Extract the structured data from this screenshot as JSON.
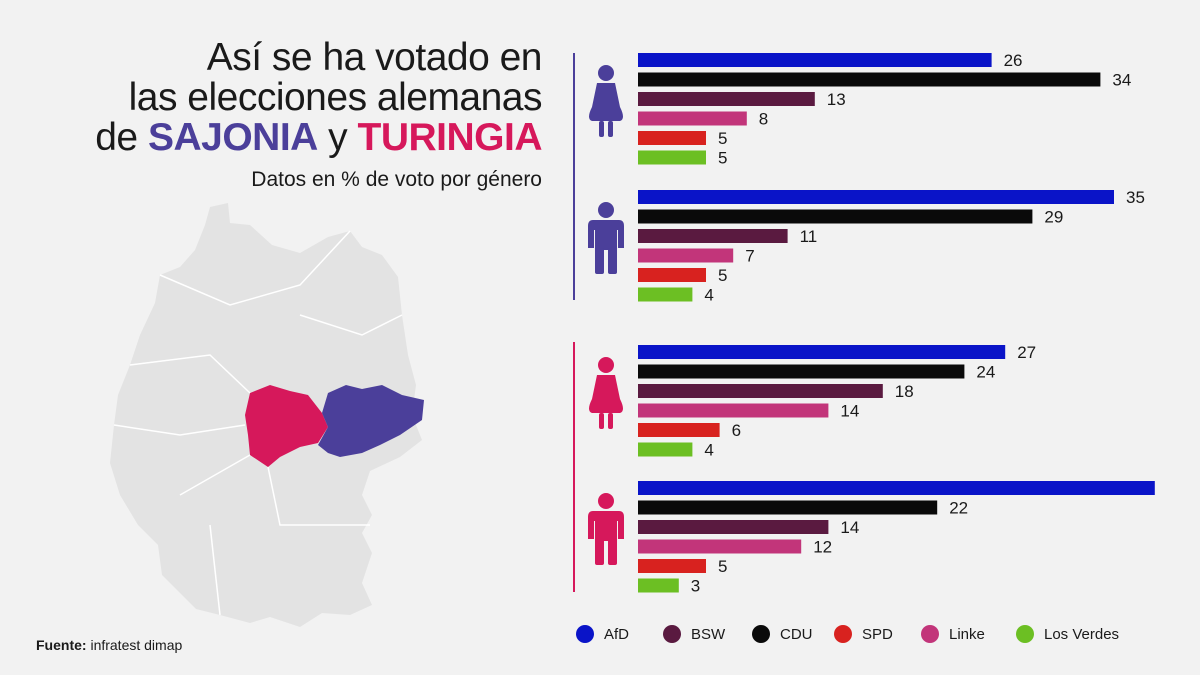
{
  "title": {
    "line1": "Así se ha votado en",
    "line2": "las elecciones alemanas",
    "line3_pre": "de ",
    "state1": "SAJONIA",
    "connector": " y ",
    "state2": "TURINGIA",
    "state1_color": "#4b3f9a",
    "state2_color": "#d6185b"
  },
  "subtitle": "Datos en % de voto por género",
  "source": {
    "label": "Fuente:",
    "text": " infratest dimap"
  },
  "map": {
    "sajonia_color": "#4b3f9a",
    "turingia_color": "#d6185b",
    "base_color": "#e3e3e3"
  },
  "chart_data": {
    "type": "bar",
    "orientation": "horizontal",
    "categories": [
      "AfD",
      "CDU",
      "BSW",
      "Linke",
      "SPD",
      "Los Verdes"
    ],
    "colors": {
      "AfD": "#0a14c8",
      "CDU": "#0a0a0a",
      "BSW": "#5a1a40",
      "Linke": "#c2357a",
      "SPD": "#d8221f",
      "Los Verdes": "#6cbf23"
    },
    "groups": [
      {
        "state": "Sajonia",
        "gender": "mujeres",
        "icon": "woman-icon",
        "color": "#4b3f9a",
        "values": [
          26,
          34,
          13,
          8,
          5,
          5
        ]
      },
      {
        "state": "Sajonia",
        "gender": "hombres",
        "icon": "man-icon",
        "color": "#4b3f9a",
        "values": [
          35,
          29,
          11,
          7,
          5,
          4
        ]
      },
      {
        "state": "Turingia",
        "gender": "mujeres",
        "icon": "woman-icon",
        "color": "#d6185b",
        "values": [
          27,
          24,
          18,
          14,
          6,
          4
        ]
      },
      {
        "state": "Turingia",
        "gender": "hombres",
        "icon": "man-icon",
        "color": "#d6185b",
        "values": [
          38,
          22,
          14,
          12,
          5,
          3
        ]
      }
    ],
    "legend": [
      "AfD",
      "BSW",
      "CDU",
      "SPD",
      "Linke",
      "Los Verdes"
    ],
    "legend_placement": "bottom",
    "xlim": [
      0,
      40
    ],
    "grid": false
  }
}
